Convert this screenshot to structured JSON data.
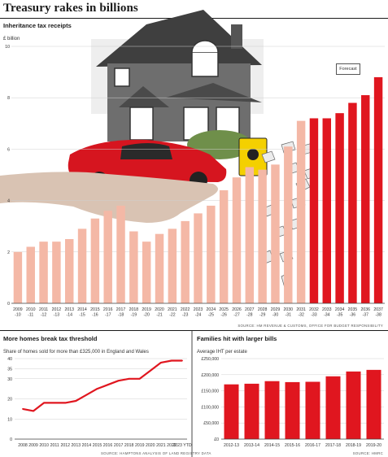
{
  "page": {
    "title": "Treasury rakes in billions"
  },
  "chart_data": [
    {
      "type": "bar",
      "title": "Inheritance tax receipts",
      "ylabel": "£ billion",
      "ylim": [
        0,
        10
      ],
      "yticks": [
        0,
        2,
        4,
        6,
        8,
        10
      ],
      "categories": [
        "2009-10",
        "2010-11",
        "2011-12",
        "2012-13",
        "2013-14",
        "2014-15",
        "2015-16",
        "2016-17",
        "2017-18",
        "2018-19",
        "2019-20",
        "2020-21",
        "2021-22",
        "2022-23",
        "2023-24",
        "2024-25",
        "2025-26",
        "2026-27",
        "2027-28",
        "2028-29",
        "2029-30",
        "2030-31",
        "2031-32",
        "2032-33",
        "2033-34",
        "2034-35",
        "2035-36",
        "2036-37",
        "2037-38"
      ],
      "tick_labels": [
        [
          "2009",
          "-10"
        ],
        [
          "2010",
          "-11"
        ],
        [
          "2011",
          "-12"
        ],
        [
          "2012",
          "-13"
        ],
        [
          "2013",
          "-14"
        ],
        [
          "2014",
          "-15"
        ],
        [
          "2015",
          "-16"
        ],
        [
          "2016",
          "-17"
        ],
        [
          "2017",
          "-18"
        ],
        [
          "2018",
          "-19"
        ],
        [
          "2019",
          "-20"
        ],
        [
          "2020",
          "-21"
        ],
        [
          "2021",
          "-22"
        ],
        [
          "2022",
          "-23"
        ],
        [
          "2023",
          "-24"
        ],
        [
          "2024",
          "-25"
        ],
        [
          "2025",
          "-26"
        ],
        [
          "2026",
          "-27"
        ],
        [
          "2027",
          "-28"
        ],
        [
          "2028",
          "-29"
        ],
        [
          "2029",
          "-30"
        ],
        [
          "2030",
          "-31"
        ],
        [
          "2031",
          "-32"
        ],
        [
          "2032",
          "-33"
        ],
        [
          "2033",
          "-34"
        ],
        [
          "2034",
          "-35"
        ],
        [
          "2035",
          "-36"
        ],
        [
          "2036",
          "-37"
        ],
        [
          "2037",
          "-38"
        ]
      ],
      "values": [
        2.0,
        2.2,
        2.4,
        2.4,
        2.5,
        2.9,
        3.3,
        3.6,
        3.8,
        2.8,
        2.4,
        2.7,
        2.9,
        3.2,
        3.5,
        3.8,
        4.4,
        4.9,
        5.3,
        5.2,
        5.4,
        6.1,
        7.1,
        7.2,
        7.2,
        7.4,
        7.8,
        8.1,
        8.8
      ],
      "forecast_start_index": 23,
      "annotation": "Forecast",
      "colors": {
        "actual": "#f4b8a6",
        "forecast": "#e0161f"
      },
      "source": "SOURCE: HM REVENUE & CUSTOMS, OFFICE FOR BUDGET RESPONSIBILITY"
    },
    {
      "type": "line",
      "title": "More homes break tax threshold",
      "subtitle": "Share of homes sold for more than £325,000 in England and Wales",
      "ylim": [
        0,
        40
      ],
      "yticks": [
        0,
        10,
        20,
        30,
        35,
        40
      ],
      "x": [
        "2008",
        "2009",
        "2010",
        "2011",
        "2012",
        "2013",
        "2014",
        "2015",
        "2016",
        "2017",
        "2018",
        "2019",
        "2020",
        "2021",
        "2022",
        "2023 YTD"
      ],
      "values": [
        15,
        14,
        18,
        18,
        18,
        19,
        22,
        25,
        27,
        29,
        30,
        30,
        34,
        38,
        39,
        39
      ],
      "color": "#e0161f",
      "source": "SOURCE: HAMPTONS ANALYSIS OF LAND REGISTRY DATA"
    },
    {
      "type": "bar",
      "title": "Families hit with larger bills",
      "subtitle": "Average IHT per estate",
      "ylim": [
        0,
        250000
      ],
      "yticks": [
        "£0",
        "£50,000",
        "£100,000",
        "£150,000",
        "£200,000",
        "£250,000"
      ],
      "ytick_values": [
        0,
        50000,
        100000,
        150000,
        200000,
        250000
      ],
      "categories": [
        "2012-13",
        "2013-14",
        "2014-15",
        "2015-16",
        "2016-17",
        "2017-18",
        "2018-19",
        "2019-20"
      ],
      "values": [
        170000,
        172000,
        180000,
        177000,
        178000,
        195000,
        210000,
        215000
      ],
      "color": "#e0161f",
      "source": "SOURCE: HMRC"
    }
  ]
}
